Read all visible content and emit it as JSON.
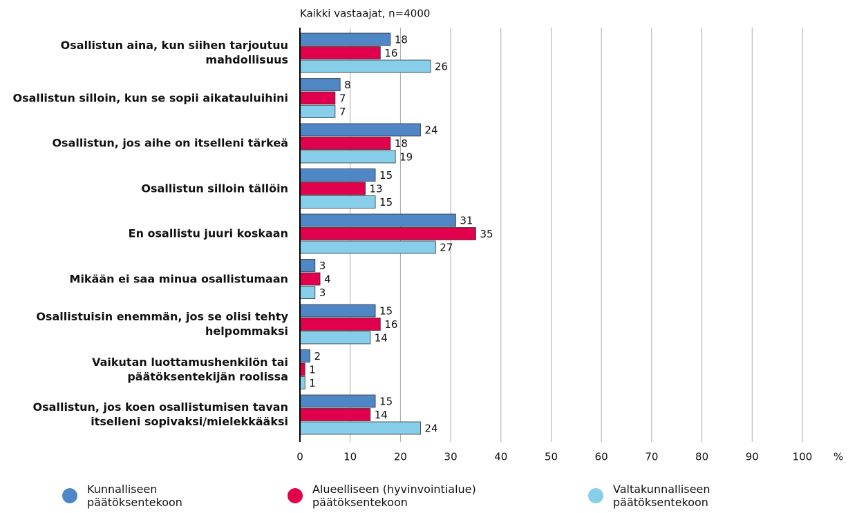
{
  "chart_data": {
    "type": "bar",
    "orientation": "horizontal",
    "subtitle": "Kaikki vastaajat, n=4000",
    "xlabel": "%",
    "categories": [
      "Osallistun aina, kun siihen tarjoutuu mahdollisuus",
      "Osallistun silloin, kun se sopii aikatauluihini",
      "Osallistun, jos aihe on itselleni tärkeä",
      "Osallistun silloin tällöin",
      "En osallistu juuri koskaan",
      "Mikään ei saa minua osallistumaan",
      "Osallistuisin enemmän, jos se olisi tehty helpommaksi",
      "Vaikutan luottamushenkilön tai päätöksentekijän roolissa",
      "Osallistun, jos koen osallistumisen tavan itselleni sopivaksi/mielekkääksi"
    ],
    "series": [
      {
        "name": "Kunnalliseen päätöksentekoon",
        "color": "#4f86c6",
        "values": [
          18,
          8,
          24,
          15,
          31,
          3,
          15,
          2,
          15
        ]
      },
      {
        "name": "Alueelliseen (hyvinvointialue) päätöksentekoon",
        "color": "#e0004d",
        "values": [
          16,
          7,
          18,
          13,
          35,
          4,
          16,
          1,
          14
        ]
      },
      {
        "name": "Valtakunnalliseen päätöksentekoon",
        "color": "#87ceeb",
        "values": [
          26,
          7,
          19,
          15,
          27,
          3,
          14,
          1,
          24
        ]
      }
    ],
    "xlim": [
      0,
      100
    ],
    "xticks": [
      0,
      10,
      20,
      30,
      40,
      50,
      60,
      70,
      80,
      90,
      100
    ],
    "grid": true
  }
}
